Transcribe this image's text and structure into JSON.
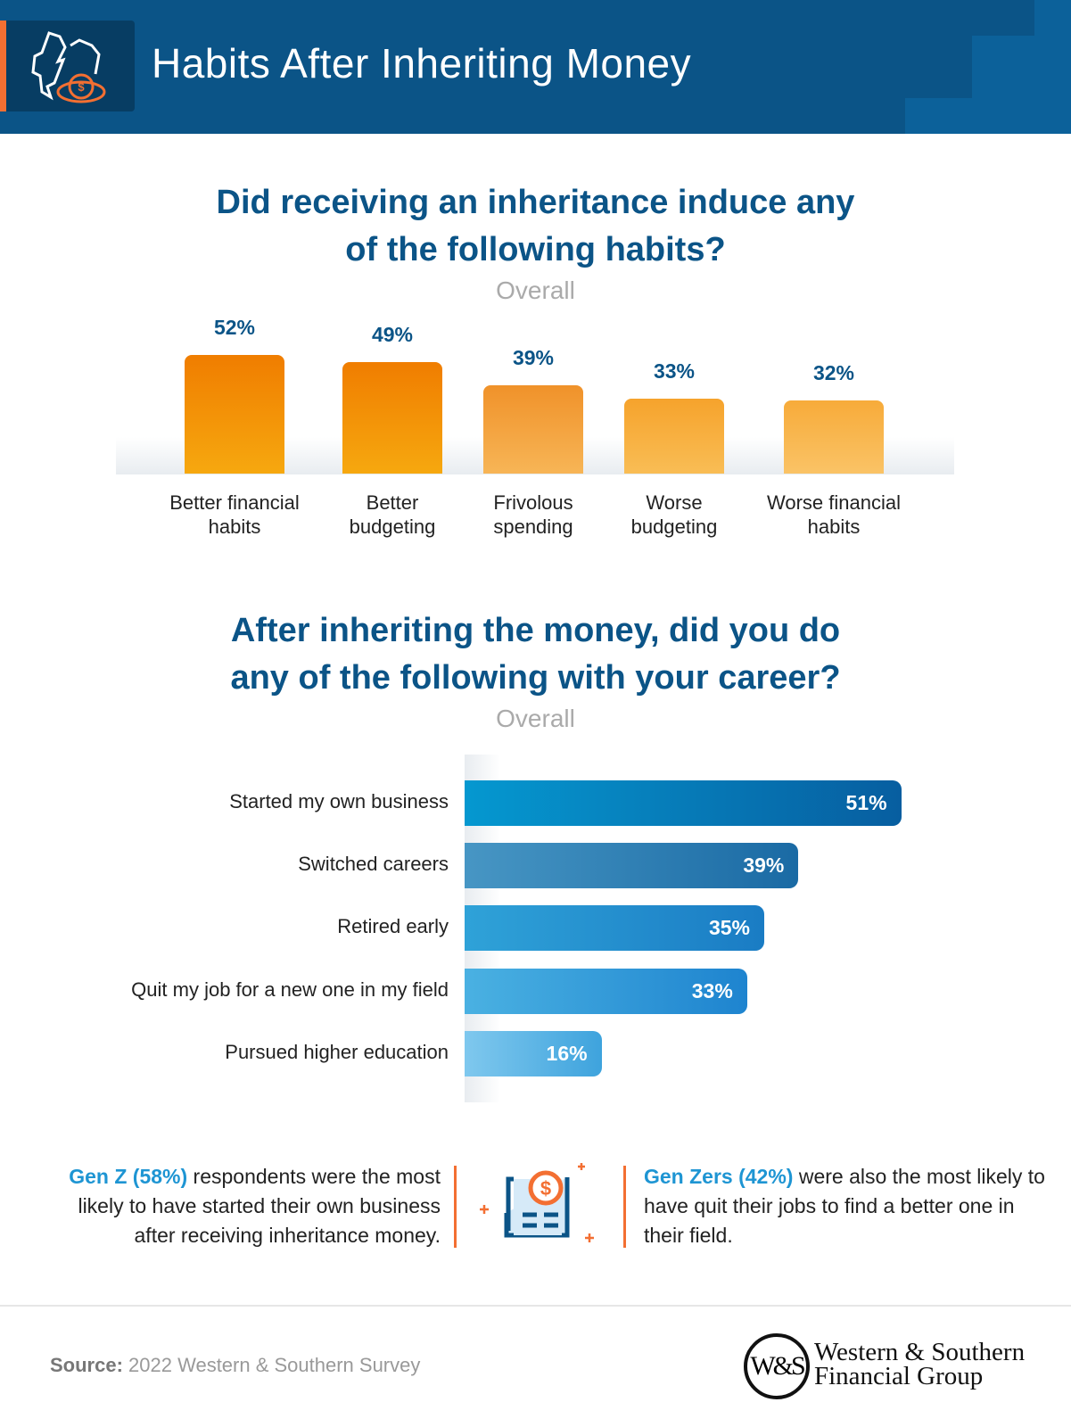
{
  "header": {
    "title": "Habits After Inheriting Money",
    "icon": "broken-piggy-bank-coins-icon"
  },
  "colors": {
    "brand_blue": "#0b5487",
    "accent_orange": "#f36f32",
    "bar_orange": "#f08a1a",
    "bar_blue": "#0568a8"
  },
  "chart_data": [
    {
      "type": "bar",
      "orientation": "vertical",
      "title": "Did receiving an inheritance induce any of the following habits?",
      "title_lines": [
        "Did receiving an inheritance induce any",
        "of the following habits?"
      ],
      "subtitle": "Overall",
      "categories": [
        "Better financial habits",
        "Better budgeting",
        "Frivolous spending",
        "Worse budgeting",
        "Worse financial habits"
      ],
      "category_lines": [
        [
          "Better financial",
          "habits"
        ],
        [
          "Better",
          "budgeting"
        ],
        [
          "Frivolous",
          "spending"
        ],
        [
          "Worse",
          "budgeting"
        ],
        [
          "Worse financial",
          "habits"
        ]
      ],
      "values": [
        52,
        49,
        39,
        33,
        32
      ],
      "value_labels": [
        "52%",
        "49%",
        "39%",
        "33%",
        "32%"
      ],
      "unit": "%"
    },
    {
      "type": "bar",
      "orientation": "horizontal",
      "title": "After inheriting the money, did you do any of the following with your career?",
      "title_lines": [
        "After inheriting the money, did you do",
        "any of the following with your career?"
      ],
      "subtitle": "Overall",
      "categories": [
        "Started my own business",
        "Switched careers",
        "Retired early",
        "Quit my job for a new one in my field",
        "Pursued higher education"
      ],
      "values": [
        51,
        39,
        35,
        33,
        16
      ],
      "value_labels": [
        "51%",
        "39%",
        "35%",
        "33%",
        "16%"
      ],
      "unit": "%"
    }
  ],
  "notes": {
    "left": {
      "highlight": "Gen Z (58%)",
      "text": " respondents were the most likely to have started their own business after receiving inheritance money."
    },
    "right": {
      "highlight": "Gen Zers (42%)",
      "text": " were also the most likely to have quit their jobs to find a better one in their field."
    },
    "icon": "receipt-dollar-icon"
  },
  "footer": {
    "source_label": "Source:",
    "source_text": " 2022 Western & Southern Survey",
    "logo_mark": "W&S",
    "logo_line1": "Western & Southern",
    "logo_line2": "Financial Group"
  }
}
